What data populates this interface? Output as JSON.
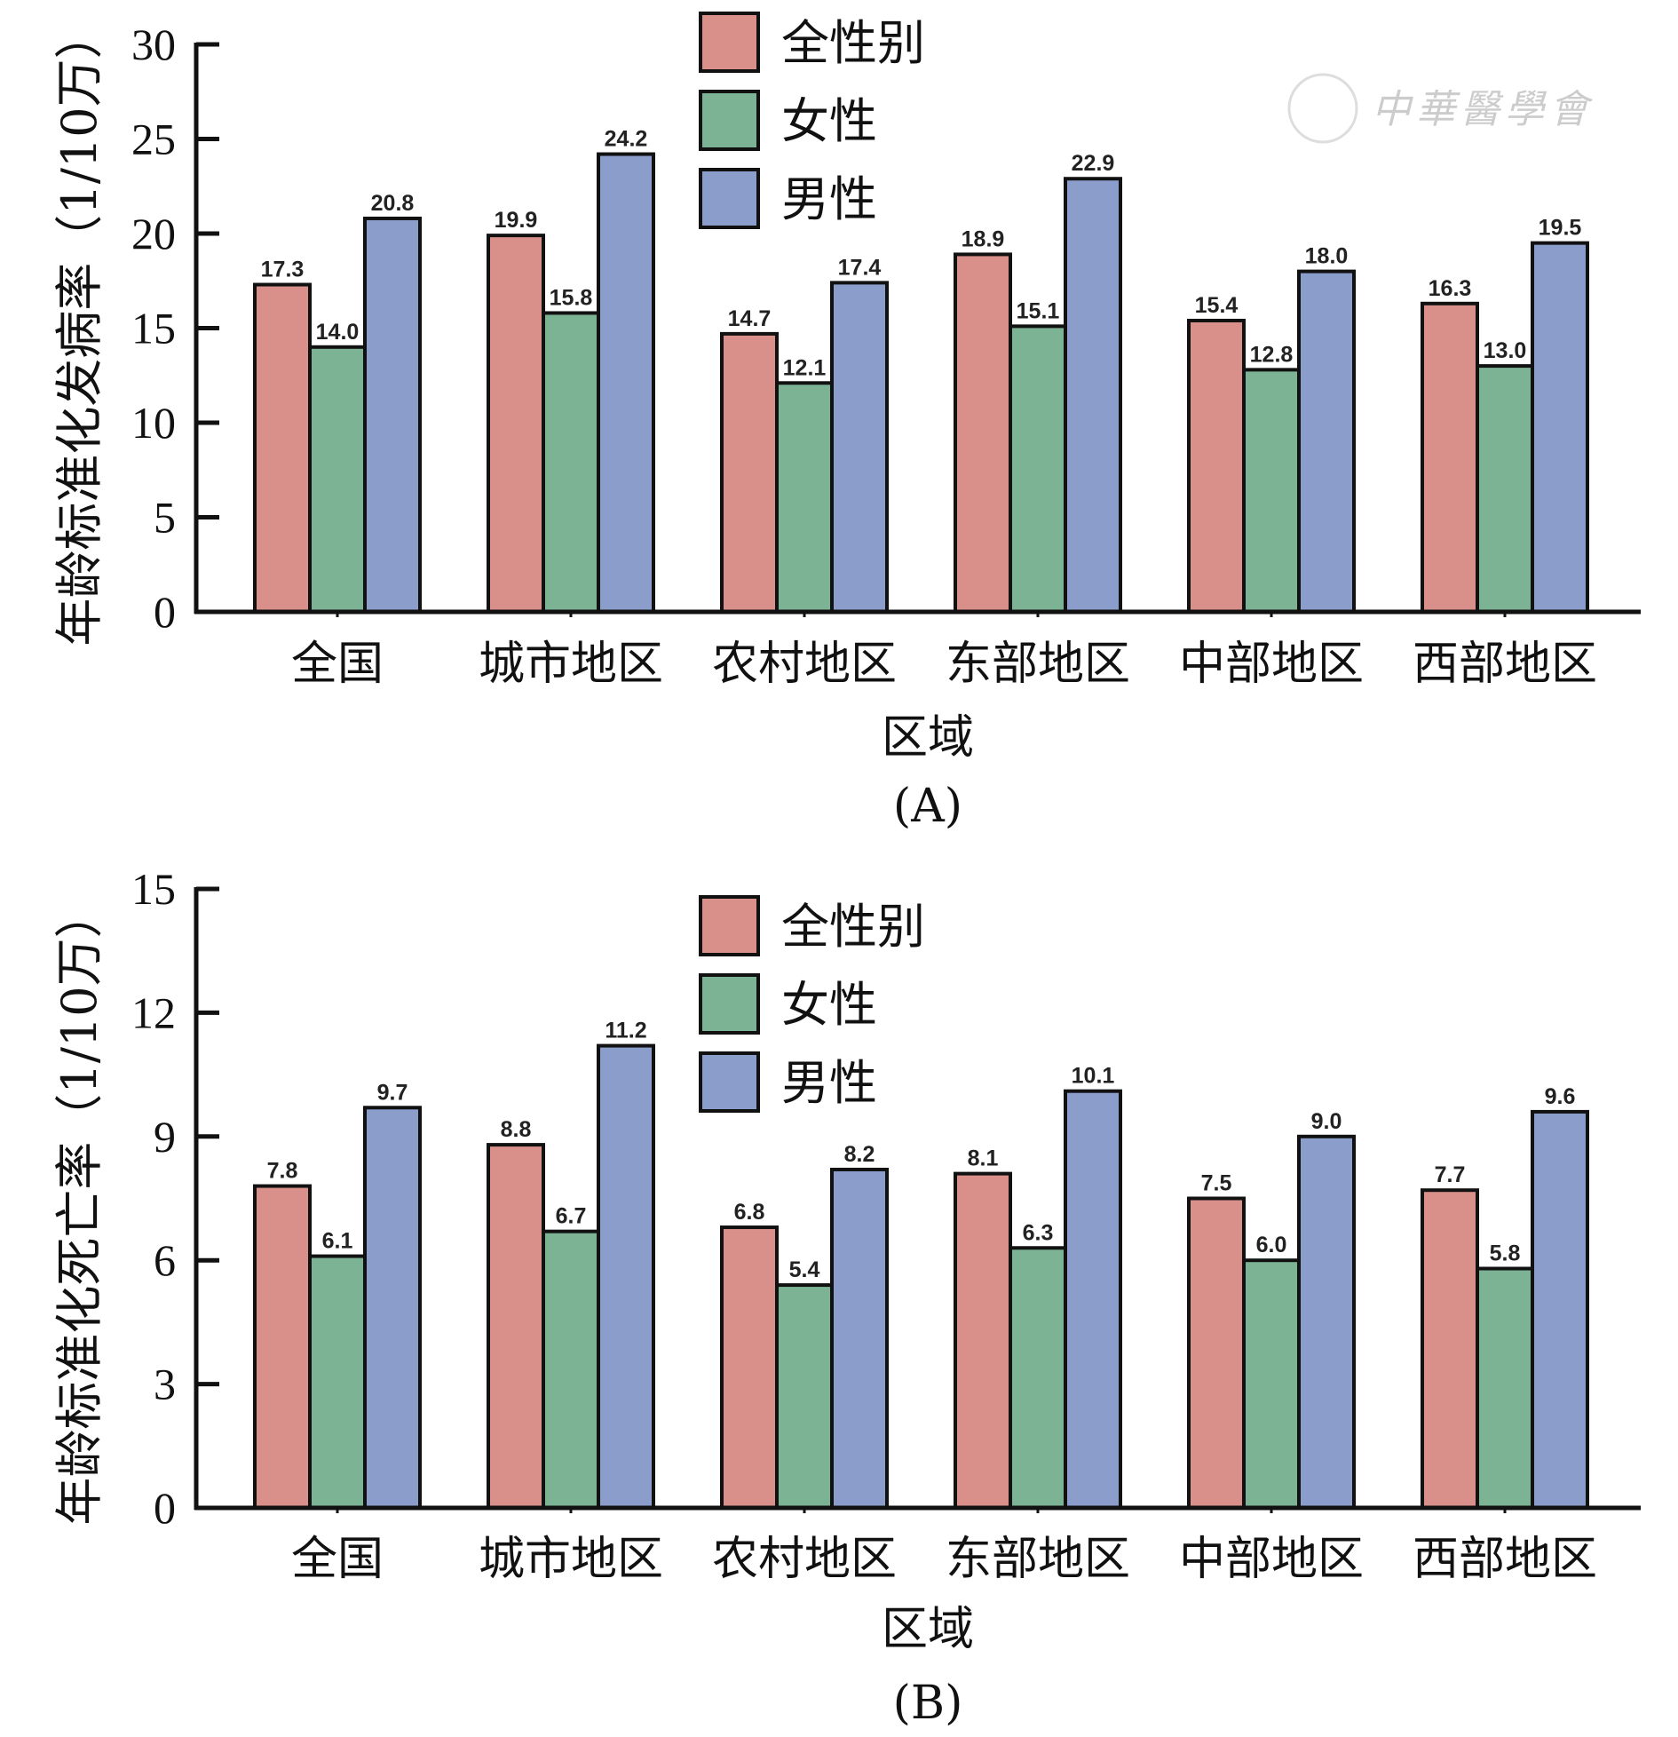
{
  "chart_data": [
    {
      "type": "bar",
      "panel": "(A)",
      "xlabel": "区域",
      "ylabel": "年龄标准化发病率（1/10万）",
      "ylim": [
        0,
        30
      ],
      "yticks": [
        0,
        5,
        10,
        15,
        20,
        25,
        30
      ],
      "categories": [
        "全国",
        "城市地区",
        "农村地区",
        "东部地区",
        "中部地区",
        "西部地区"
      ],
      "series": [
        {
          "name": "全性别",
          "color": "#d9908a",
          "values": [
            17.3,
            19.9,
            14.7,
            18.9,
            15.4,
            16.3
          ]
        },
        {
          "name": "女性",
          "color": "#7db395",
          "values": [
            14.0,
            15.8,
            12.1,
            15.1,
            12.8,
            13.0
          ]
        },
        {
          "name": "男性",
          "color": "#8a9dcb",
          "values": [
            20.8,
            24.2,
            17.4,
            22.9,
            18.0,
            19.5
          ]
        }
      ],
      "legend_position": "top-center",
      "grid": false
    },
    {
      "type": "bar",
      "panel": "(B)",
      "xlabel": "区域",
      "ylabel": "年龄标准化死亡率（1/10万）",
      "ylim": [
        0,
        15
      ],
      "yticks": [
        0,
        3,
        6,
        9,
        12,
        15
      ],
      "categories": [
        "全国",
        "城市地区",
        "农村地区",
        "东部地区",
        "中部地区",
        "西部地区"
      ],
      "series": [
        {
          "name": "全性别",
          "color": "#d9908a",
          "values": [
            7.8,
            8.8,
            6.8,
            8.1,
            7.5,
            7.7
          ]
        },
        {
          "name": "女性",
          "color": "#7db395",
          "values": [
            6.1,
            6.7,
            5.4,
            6.3,
            6.0,
            5.8
          ]
        },
        {
          "name": "男性",
          "color": "#8a9dcb",
          "values": [
            9.7,
            11.2,
            8.2,
            10.1,
            9.0,
            9.6
          ]
        }
      ],
      "legend_position": "top-center",
      "grid": false
    }
  ],
  "watermark": "中華醫學會"
}
